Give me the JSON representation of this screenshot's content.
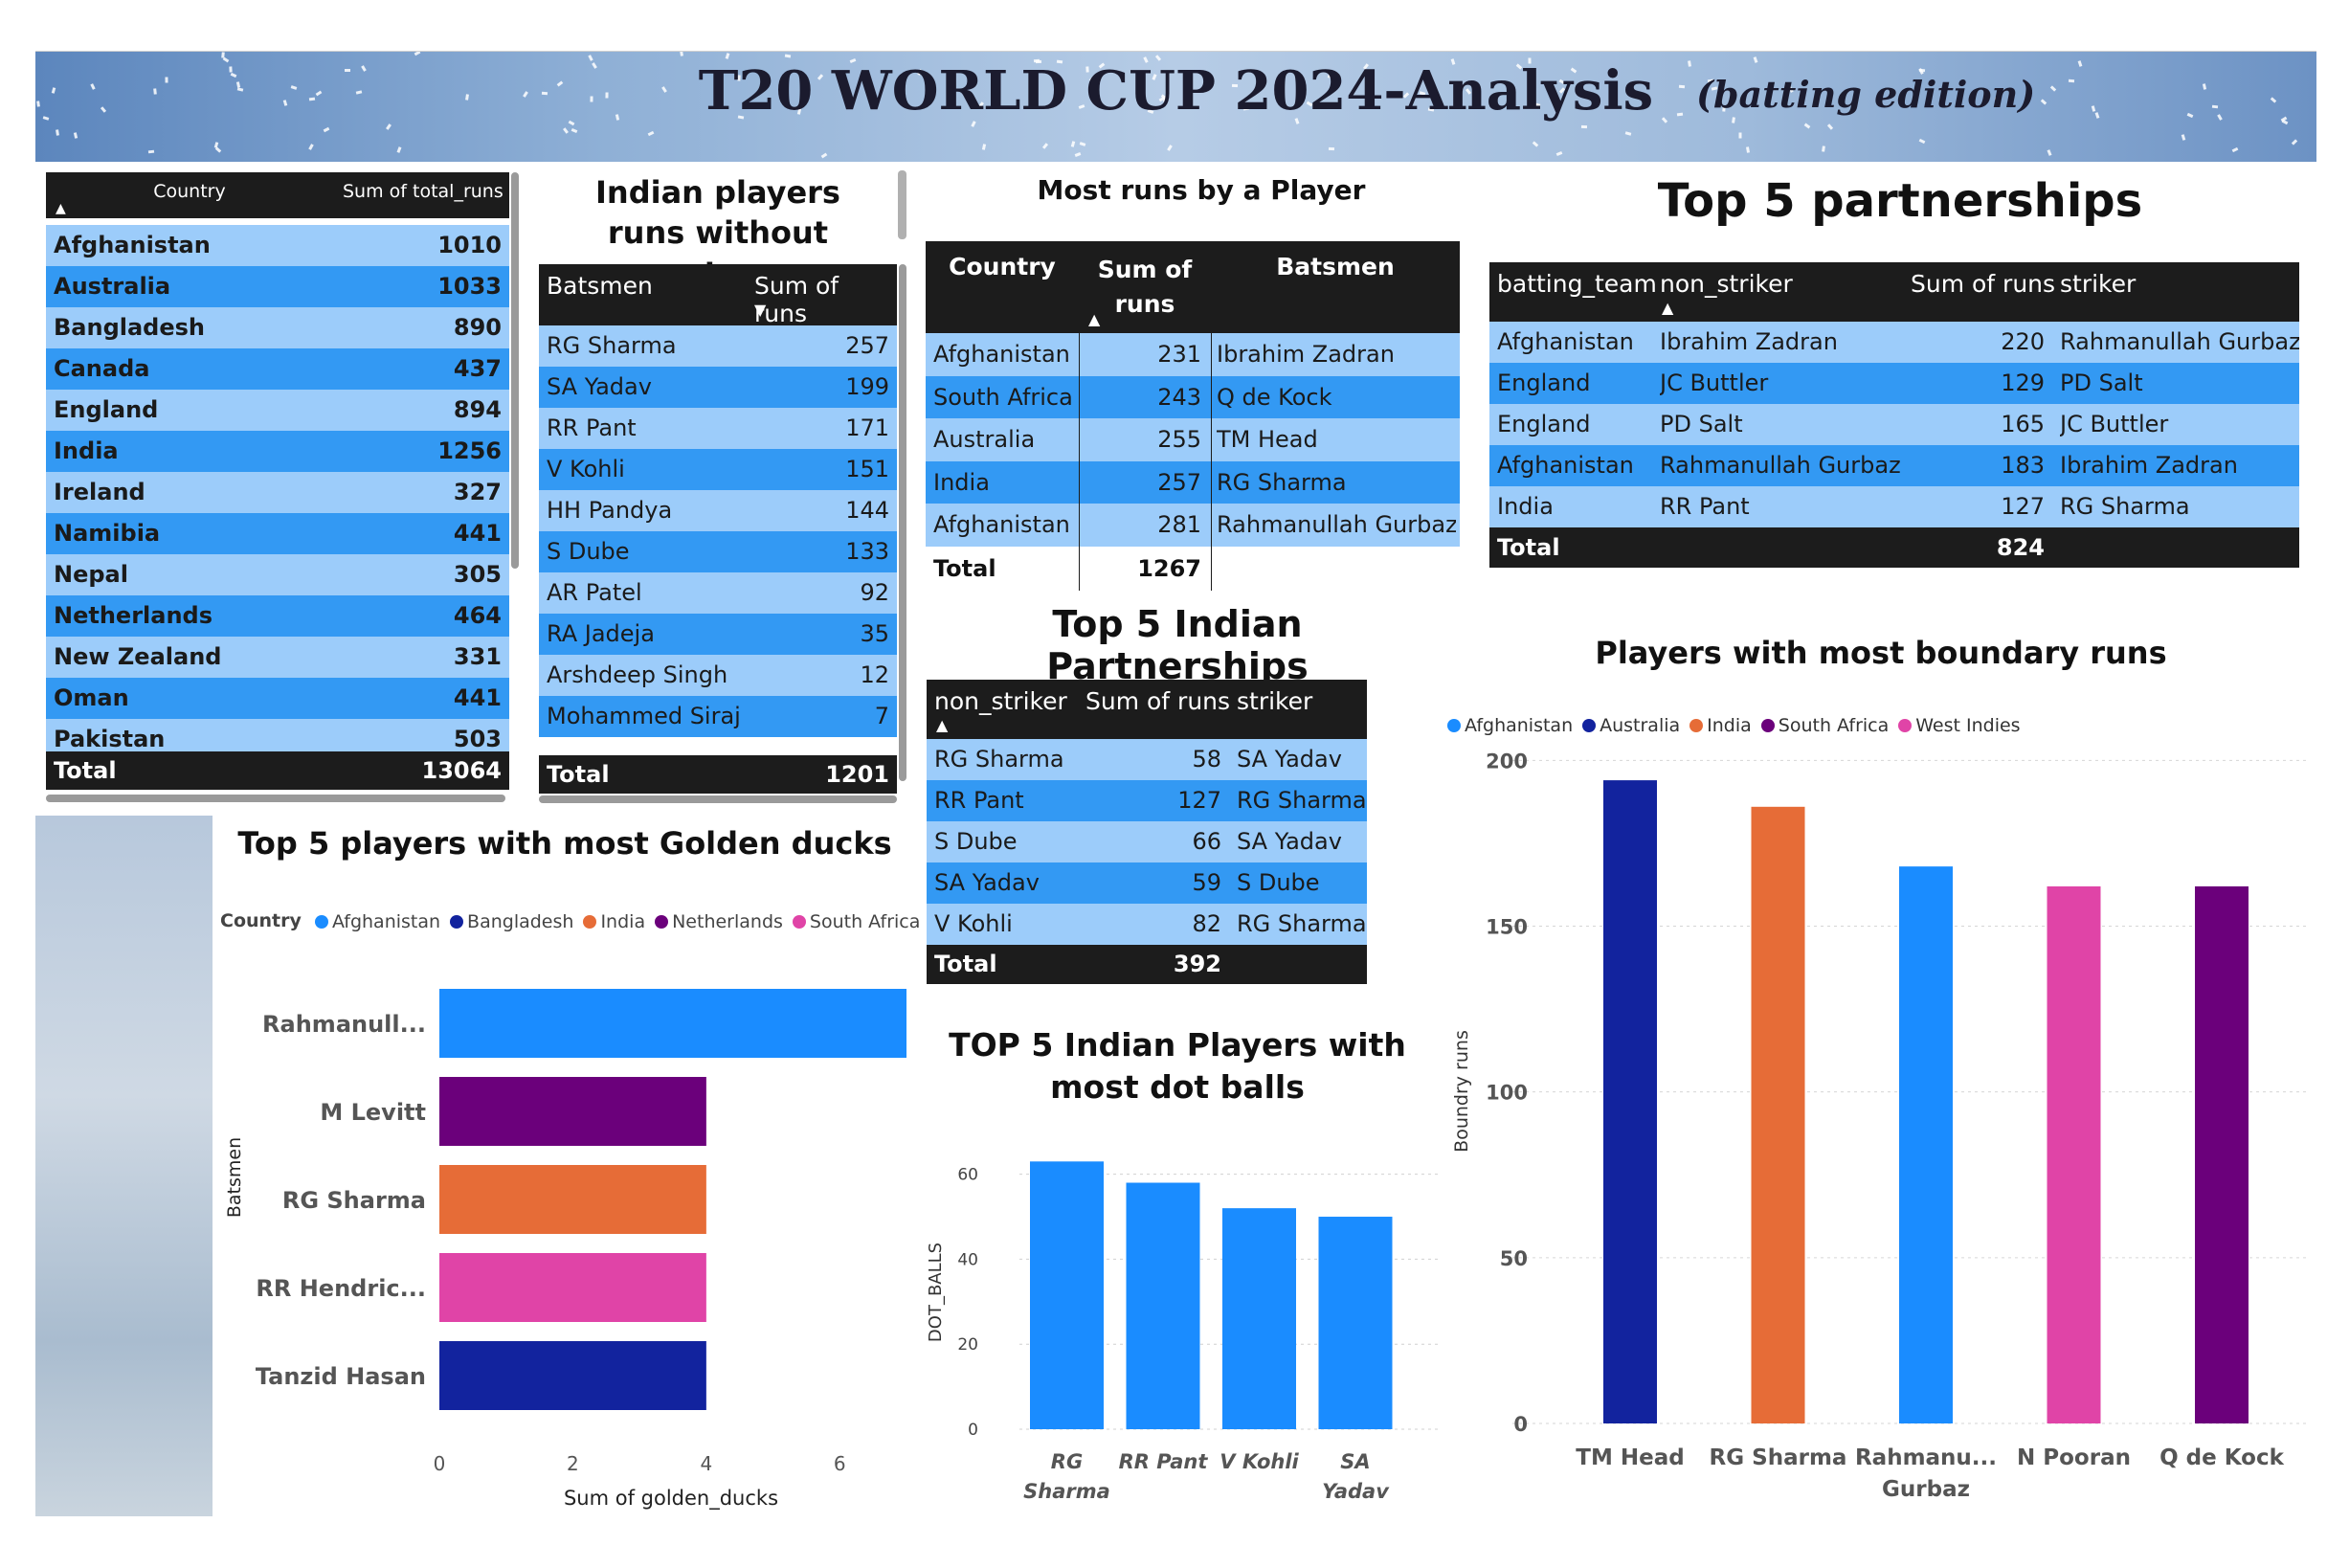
{
  "banner": {
    "title": "T20 WORLD CUP 2024-Analysis",
    "subtitle": "(batting edition)"
  },
  "country_runs": {
    "headers": [
      "Country",
      "Sum of total_runs"
    ],
    "rows": [
      {
        "country": "Afghanistan",
        "runs": "1010"
      },
      {
        "country": "Australia",
        "runs": "1033"
      },
      {
        "country": "Bangladesh",
        "runs": "890"
      },
      {
        "country": "Canada",
        "runs": "437"
      },
      {
        "country": "England",
        "runs": "894"
      },
      {
        "country": "India",
        "runs": "1256"
      },
      {
        "country": "Ireland",
        "runs": "327"
      },
      {
        "country": "Namibia",
        "runs": "441"
      },
      {
        "country": "Nepal",
        "runs": "305"
      },
      {
        "country": "Netherlands",
        "runs": "464"
      },
      {
        "country": "New Zealand",
        "runs": "331"
      },
      {
        "country": "Oman",
        "runs": "441"
      },
      {
        "country": "Pakistan",
        "runs": "503"
      }
    ],
    "total_label": "Total",
    "total_value": "13064"
  },
  "indian_runs": {
    "title": "Indian players runs without extras",
    "headers": [
      "Batsmen",
      "Sum of runs"
    ],
    "rows": [
      {
        "batsman": "RG Sharma",
        "runs": "257"
      },
      {
        "batsman": "SA Yadav",
        "runs": "199"
      },
      {
        "batsman": "RR Pant",
        "runs": "171"
      },
      {
        "batsman": "V Kohli",
        "runs": "151"
      },
      {
        "batsman": "HH Pandya",
        "runs": "144"
      },
      {
        "batsman": "S Dube",
        "runs": "133"
      },
      {
        "batsman": "AR Patel",
        "runs": "92"
      },
      {
        "batsman": "RA Jadeja",
        "runs": "35"
      },
      {
        "batsman": "Arshdeep Singh",
        "runs": "12"
      },
      {
        "batsman": "Mohammed Siraj",
        "runs": "7"
      }
    ],
    "total_label": "Total",
    "total_value": "1201"
  },
  "most_runs": {
    "title": "Most runs by a Player",
    "headers": [
      "Country",
      "Sum of runs",
      "Batsmen"
    ],
    "rows": [
      {
        "country": "Afghanistan",
        "runs": "231",
        "batsman": "Ibrahim Zadran"
      },
      {
        "country": "South Africa",
        "runs": "243",
        "batsman": "Q de Kock"
      },
      {
        "country": "Australia",
        "runs": "255",
        "batsman": "TM Head"
      },
      {
        "country": "India",
        "runs": "257",
        "batsman": "RG Sharma"
      },
      {
        "country": "Afghanistan",
        "runs": "281",
        "batsman": "Rahmanullah Gurbaz"
      }
    ],
    "total_label": "Total",
    "total_value": "1267"
  },
  "partnerships": {
    "title": "Top 5 partnerships",
    "headers": [
      "batting_team",
      "non_striker",
      "Sum of runs",
      "striker"
    ],
    "rows": [
      {
        "team": "Afghanistan",
        "non_striker": "Ibrahim Zadran",
        "runs": "220",
        "striker": "Rahmanullah Gurbaz"
      },
      {
        "team": "England",
        "non_striker": "JC Buttler",
        "runs": "129",
        "striker": "PD Salt"
      },
      {
        "team": "England",
        "non_striker": "PD Salt",
        "runs": "165",
        "striker": "JC Buttler"
      },
      {
        "team": "Afghanistan",
        "non_striker": "Rahmanullah Gurbaz",
        "runs": "183",
        "striker": "Ibrahim Zadran"
      },
      {
        "team": "India",
        "non_striker": "RR Pant",
        "runs": "127",
        "striker": "RG Sharma"
      }
    ],
    "total_label": "Total",
    "total_value": "824"
  },
  "indian_partnerships": {
    "title": "Top 5 Indian Partnerships",
    "headers": [
      "non_striker",
      "Sum of runs",
      "striker"
    ],
    "rows": [
      {
        "non_striker": "RG Sharma",
        "runs": "58",
        "striker": "SA Yadav"
      },
      {
        "non_striker": "RR Pant",
        "runs": "127",
        "striker": "RG Sharma"
      },
      {
        "non_striker": "S Dube",
        "runs": "66",
        "striker": "SA Yadav"
      },
      {
        "non_striker": "SA Yadav",
        "runs": "59",
        "striker": "S Dube"
      },
      {
        "non_striker": "V Kohli",
        "runs": "82",
        "striker": "RG Sharma"
      }
    ],
    "total_label": "Total",
    "total_value": "392"
  },
  "colors": {
    "light_row": "#9cccfa",
    "dark_row": "#3399f3",
    "header": "#1c1c1c",
    "afghanistan": "#1a8cff",
    "bangladesh": "#12239e",
    "australia": "#12239e",
    "india": "#e66c37",
    "netherlands": "#6b007b",
    "south_africa": "#6b007b",
    "south_africa_ducks": "#e044a7",
    "west_indies": "#e044a7"
  },
  "chart_data": [
    {
      "id": "golden_ducks",
      "type": "bar",
      "orientation": "horizontal",
      "title": "Top 5 players with most Golden ducks",
      "legend_title": "Country",
      "legend": [
        {
          "name": "Afghanistan",
          "color": "#1a8cff"
        },
        {
          "name": "Bangladesh",
          "color": "#12239e"
        },
        {
          "name": "India",
          "color": "#e66c37"
        },
        {
          "name": "Netherlands",
          "color": "#6b007b"
        },
        {
          "name": "South Africa",
          "color": "#e044a7"
        }
      ],
      "categories": [
        "Rahmanull...",
        "M Levitt",
        "RG Sharma",
        "RR Hendric...",
        "Tanzid Hasan"
      ],
      "values": [
        7,
        4,
        4,
        4,
        4
      ],
      "bar_colors": [
        "#1a8cff",
        "#6b007b",
        "#e66c37",
        "#e044a7",
        "#12239e"
      ],
      "xlabel": "Sum of golden_ducks",
      "ylabel": "Batsmen",
      "xlim": [
        0,
        7
      ],
      "ticks": [
        "0",
        "2",
        "4",
        "6"
      ],
      "tick_values": [
        0,
        2,
        4,
        6
      ],
      "legend_position": "top-left"
    },
    {
      "id": "dot_balls",
      "type": "bar",
      "title": "TOP 5 Indian Players with most dot balls",
      "categories": [
        [
          "RG",
          "Sharma"
        ],
        [
          "RR Pant"
        ],
        [
          "V Kohli"
        ],
        [
          "SA",
          "Yadav"
        ]
      ],
      "values": [
        63,
        58,
        52,
        50
      ],
      "color": "#1a8cff",
      "xlabel": "",
      "ylabel": "DOT_BALLS",
      "ylim": [
        0,
        66
      ],
      "ticks": [
        "0",
        "20",
        "40",
        "60"
      ],
      "tick_values": [
        0,
        20,
        40,
        60
      ],
      "grid": true
    },
    {
      "id": "boundary_runs",
      "type": "bar",
      "title": "Players with most boundary runs",
      "legend": [
        {
          "name": "Afghanistan",
          "color": "#1a8cff"
        },
        {
          "name": "Australia",
          "color": "#12239e"
        },
        {
          "name": "India",
          "color": "#e66c37"
        },
        {
          "name": "South Africa",
          "color": "#6b007b"
        },
        {
          "name": "West Indies",
          "color": "#e044a7"
        }
      ],
      "categories": [
        [
          "TM Head"
        ],
        [
          "RG Sharma"
        ],
        [
          "Rahmanu...",
          "Gurbaz"
        ],
        [
          "N Pooran"
        ],
        [
          "Q de Kock"
        ]
      ],
      "values": [
        194,
        186,
        168,
        162,
        162
      ],
      "bar_colors": [
        "#12239e",
        "#e66c37",
        "#1a8cff",
        "#e044a7",
        "#6b007b"
      ],
      "xlabel": "",
      "ylabel": "Boundry runs",
      "ylim": [
        0,
        205
      ],
      "ticks": [
        "0",
        "50",
        "100",
        "150",
        "200"
      ],
      "tick_values": [
        0,
        50,
        100,
        150,
        200
      ],
      "grid": true,
      "legend_position": "top-left"
    }
  ]
}
